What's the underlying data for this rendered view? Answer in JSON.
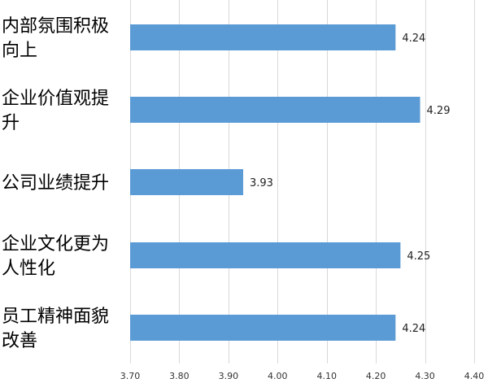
{
  "chart_data": {
    "type": "bar",
    "orientation": "horizontal",
    "categories": [
      [
        "内部氛围积极",
        "向上"
      ],
      [
        "企业价值观提",
        "升"
      ],
      [
        "公司业绩提升"
      ],
      [
        "企业文化更为",
        "人性化"
      ],
      [
        "员工精神面貌",
        "改善"
      ]
    ],
    "values": [
      4.24,
      4.29,
      3.93,
      4.25,
      4.24
    ],
    "value_labels": [
      "4.24",
      "4.29",
      "3.93",
      "4.25",
      "4.24"
    ],
    "xlim": [
      3.7,
      4.4
    ],
    "xticks": [
      "3.70",
      "3.80",
      "3.90",
      "4.00",
      "4.10",
      "4.20",
      "4.30",
      "4.40"
    ],
    "xtick_values": [
      3.7,
      3.8,
      3.9,
      4.0,
      4.1,
      4.2,
      4.3,
      4.4
    ],
    "bar_color": "#5B9BD5",
    "grid": true,
    "grid_color": "#d9d9d9",
    "title": "",
    "xlabel": "",
    "ylabel": ""
  }
}
